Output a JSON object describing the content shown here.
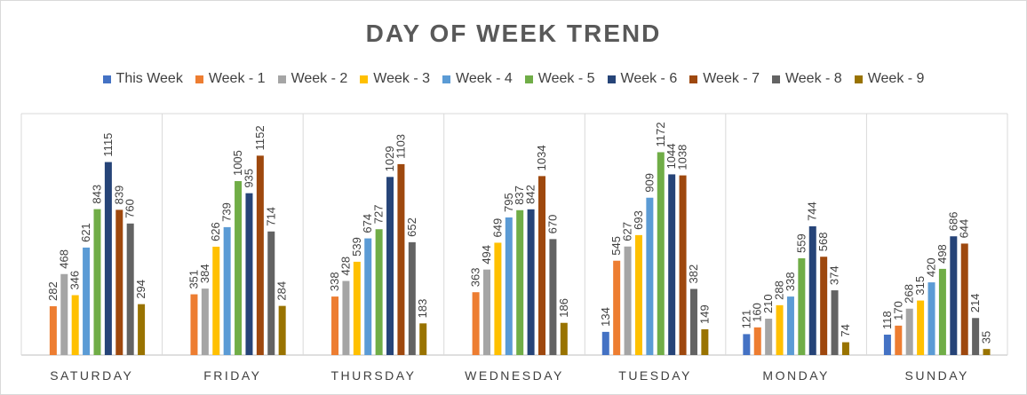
{
  "chart_data": {
    "type": "bar",
    "title": "DAY OF WEEK TREND",
    "categories": [
      "SATURDAY",
      "FRIDAY",
      "THURSDAY",
      "WEDNESDAY",
      "TUESDAY",
      "MONDAY",
      "SUNDAY"
    ],
    "series": [
      {
        "name": "This Week",
        "color": "#4472C4",
        "values": [
          null,
          null,
          null,
          null,
          134,
          121,
          118
        ]
      },
      {
        "name": "Week - 1",
        "color": "#ED7D31",
        "values": [
          282,
          351,
          338,
          363,
          545,
          160,
          170
        ]
      },
      {
        "name": "Week - 2",
        "color": "#A5A5A5",
        "values": [
          468,
          384,
          428,
          494,
          627,
          210,
          268
        ]
      },
      {
        "name": "Week - 3",
        "color": "#FFC000",
        "values": [
          346,
          626,
          539,
          649,
          693,
          288,
          315
        ]
      },
      {
        "name": "Week - 4",
        "color": "#5B9BD5",
        "values": [
          621,
          739,
          674,
          795,
          909,
          338,
          420
        ]
      },
      {
        "name": "Week - 5",
        "color": "#70AD47",
        "values": [
          843,
          1005,
          727,
          837,
          1172,
          559,
          498
        ]
      },
      {
        "name": "Week - 6",
        "color": "#264478",
        "values": [
          1115,
          935,
          1029,
          842,
          1044,
          744,
          686
        ]
      },
      {
        "name": "Week - 7",
        "color": "#9E480E",
        "values": [
          839,
          1152,
          1103,
          1034,
          1038,
          568,
          644
        ]
      },
      {
        "name": "Week - 8",
        "color": "#636363",
        "values": [
          760,
          714,
          652,
          670,
          382,
          374,
          214
        ]
      },
      {
        "name": "Week - 9",
        "color": "#997300",
        "values": [
          294,
          284,
          183,
          186,
          149,
          74,
          35
        ]
      }
    ],
    "ylim": [
      0,
      1200
    ],
    "grid": false,
    "legend": "top"
  }
}
